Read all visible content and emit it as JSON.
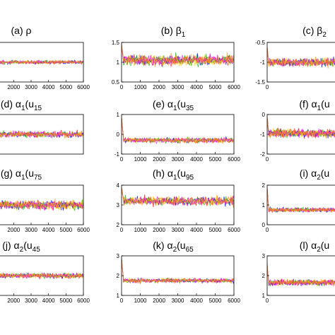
{
  "colors": [
    "#ff0000",
    "#0000ff",
    "#00c000",
    "#ffd000",
    "#ff00ff",
    "#ff8c00"
  ],
  "chart_data": [
    {
      "id": "a",
      "type": "line",
      "title": "(a) ρ",
      "xlim": [
        0,
        6000
      ],
      "ylim": [
        0.4,
        1.6
      ],
      "yticks": [],
      "xticks": [
        2000,
        3000,
        4000,
        5000,
        6000
      ],
      "level": 1.0,
      "noise": 0.05,
      "init": null,
      "xlabel": "",
      "ylabel": ""
    },
    {
      "id": "b",
      "type": "line",
      "title": "(b) β1",
      "title_main": "(b) β",
      "title_sub": "1",
      "xlim": [
        0,
        6000
      ],
      "ylim": [
        0.5,
        1.5
      ],
      "yticks": [
        0.5,
        1,
        1.5
      ],
      "xticks": [
        0,
        1000,
        2000,
        3000,
        4000,
        5000,
        6000
      ],
      "level": 1.05,
      "noise": 0.13,
      "init": 1.45,
      "xlabel": "",
      "ylabel": ""
    },
    {
      "id": "c",
      "type": "line",
      "title": "(c) β2",
      "title_main": "(c) β",
      "title_sub": "2",
      "xlim": [
        0,
        6000
      ],
      "ylim": [
        -1.5,
        -0.5
      ],
      "yticks": [
        -0.5,
        -1,
        -1.5
      ],
      "xticks": [
        0
      ],
      "level": -1.0,
      "noise": 0.1,
      "init": -0.6,
      "xlabel": "",
      "ylabel": ""
    },
    {
      "id": "d",
      "type": "line",
      "title": "(d) α1(u15)",
      "title_main": "(d) α",
      "title_sub": "1",
      "title_post": "(u",
      "title_sub2": "15",
      "xlim": [
        0,
        6000
      ],
      "ylim": [
        -1.5,
        1.5
      ],
      "yticks": [],
      "xticks": [],
      "level": 0.0,
      "noise": 0.22,
      "init": null,
      "xlabel": "",
      "ylabel": ""
    },
    {
      "id": "e",
      "type": "line",
      "title": "(e) α1(u35)",
      "title_main": "(e) α",
      "title_sub": "1",
      "title_post": "(u",
      "title_sub2": "35",
      "xlim": [
        0,
        6000
      ],
      "ylim": [
        -1,
        1
      ],
      "yticks": [
        -1,
        0,
        1
      ],
      "xticks": [
        0,
        1000,
        2000,
        3000,
        4000,
        5000,
        6000
      ],
      "level": -0.3,
      "noise": 0.12,
      "init": 0.9,
      "xlabel": "",
      "ylabel": ""
    },
    {
      "id": "f",
      "type": "line",
      "title": "(f) α1(u",
      "title_main": "(f) α",
      "title_sub": "1",
      "title_post": "(u",
      "title_sub2": "",
      "xlim": [
        0,
        6000
      ],
      "ylim": [
        -2,
        0
      ],
      "yticks": [
        0,
        -1,
        -2
      ],
      "xticks": [
        0
      ],
      "level": -0.95,
      "noise": 0.2,
      "init": -0.1,
      "xlabel": "",
      "ylabel": ""
    },
    {
      "id": "g",
      "type": "line",
      "title": "(g) α1(u75)",
      "title_main": "(g) α",
      "title_sub": "1",
      "title_post": "(u",
      "title_sub2": "75",
      "xlim": [
        0,
        6000
      ],
      "ylim": [
        2,
        4
      ],
      "yticks": [],
      "xticks": [
        2000,
        3000,
        4000,
        5000,
        6000
      ],
      "level": 3.0,
      "noise": 0.22,
      "init": null,
      "xlabel": "",
      "ylabel": ""
    },
    {
      "id": "h",
      "type": "line",
      "title": "(h) α1(u95)",
      "title_main": "(h)  α",
      "title_sub": "1",
      "title_post": "(u",
      "title_sub2": "95",
      "xlim": [
        0,
        6000
      ],
      "ylim": [
        2,
        4
      ],
      "yticks": [
        2,
        3,
        4
      ],
      "xticks": [
        0,
        1000,
        2000,
        3000,
        4000,
        5000,
        6000
      ],
      "level": 3.2,
      "noise": 0.22,
      "init": 3.9,
      "xlabel": "",
      "ylabel": ""
    },
    {
      "id": "i",
      "type": "line",
      "title": "(i) α2(u",
      "title_main": "(i) α",
      "title_sub": "2",
      "title_post": "(u",
      "title_sub2": "",
      "xlim": [
        0,
        6000
      ],
      "ylim": [
        0,
        2
      ],
      "yticks": [
        0,
        1,
        2
      ],
      "xticks": [
        0
      ],
      "level": 0.75,
      "noise": 0.1,
      "init": 1.9,
      "xlabel": "",
      "ylabel": ""
    },
    {
      "id": "j",
      "type": "line",
      "title": "(j) α2(u45)",
      "title_main": "(j) α",
      "title_sub": "2",
      "title_post": "(u",
      "title_sub2": "45",
      "xlim": [
        0,
        6000
      ],
      "ylim": [
        0.5,
        2.5
      ],
      "yticks": [],
      "xticks": [
        2000,
        3000,
        4000,
        5000,
        6000
      ],
      "level": 1.5,
      "noise": 0.12,
      "init": null,
      "xlabel": "",
      "ylabel": ""
    },
    {
      "id": "k",
      "type": "line",
      "title": "(k) α2(u65)",
      "title_main": "(k) α",
      "title_sub": "2",
      "title_post": "(u",
      "title_sub2": "65",
      "xlim": [
        0,
        6000
      ],
      "ylim": [
        1,
        3
      ],
      "yticks": [
        1,
        2,
        3
      ],
      "xticks": [
        0,
        1000,
        2000,
        3000,
        4000,
        5000,
        6000
      ],
      "level": 1.75,
      "noise": 0.1,
      "init": 2.9,
      "xlabel": "",
      "ylabel": ""
    },
    {
      "id": "l",
      "type": "line",
      "title": "(l) α2(u",
      "title_main": "(l) α",
      "title_sub": "2",
      "title_post": "(u",
      "title_sub2": "",
      "xlim": [
        0,
        6000
      ],
      "ylim": [
        1,
        3
      ],
      "yticks": [
        1,
        2,
        3
      ],
      "xticks": [
        0
      ],
      "level": 1.65,
      "noise": 0.15,
      "init": 2.6,
      "xlabel": "",
      "ylabel": ""
    }
  ]
}
